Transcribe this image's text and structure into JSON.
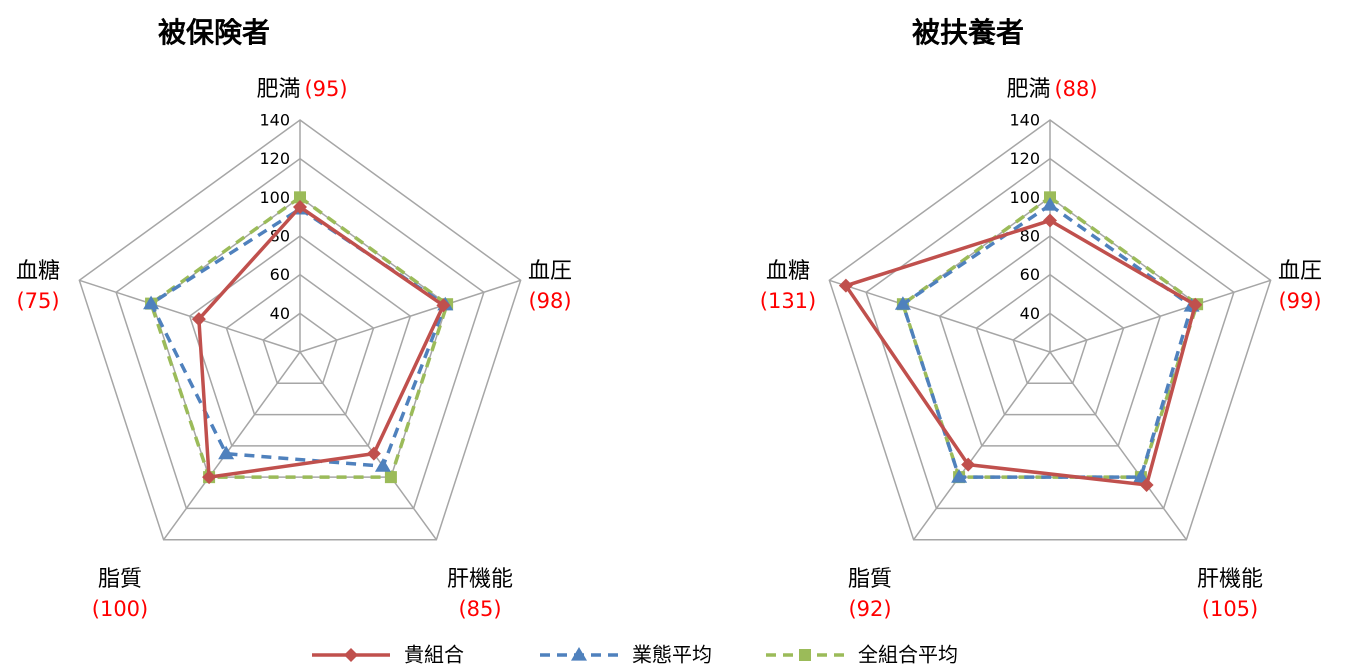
{
  "chart_data": [
    {
      "type": "radar",
      "title": "被保険者",
      "axes": [
        "肥満",
        "血圧",
        "肝機能",
        "脂質",
        "血糖"
      ],
      "axis_values": [
        "(95)",
        "(98)",
        "(85)",
        "(100)",
        "(75)"
      ],
      "rlim": [
        20,
        140
      ],
      "ticks": [
        40,
        60,
        80,
        100,
        120,
        140
      ],
      "series": [
        {
          "name": "貴組合",
          "values": [
            95,
            98,
            85,
            100,
            75
          ]
        },
        {
          "name": "業態平均",
          "values": [
            94,
            99,
            93,
            85,
            101
          ]
        },
        {
          "name": "全組合平均",
          "values": [
            100,
            100,
            100,
            100,
            101
          ]
        }
      ]
    },
    {
      "type": "radar",
      "title": "被扶養者",
      "axes": [
        "肥満",
        "血圧",
        "肝機能",
        "脂質",
        "血糖"
      ],
      "axis_values": [
        "(88)",
        "(99)",
        "(105)",
        "(92)",
        "(131)"
      ],
      "rlim": [
        20,
        140
      ],
      "ticks": [
        40,
        60,
        80,
        100,
        120,
        140
      ],
      "series": [
        {
          "name": "貴組合",
          "values": [
            88,
            99,
            105,
            92,
            131
          ]
        },
        {
          "name": "業態平均",
          "values": [
            96,
            97,
            100,
            100,
            100
          ]
        },
        {
          "name": "全組合平均",
          "values": [
            100,
            100,
            100,
            100,
            100
          ]
        }
      ]
    }
  ],
  "legend": [
    {
      "label": "貴組合",
      "color": "#C0504D",
      "marker": "diamond",
      "dash": "solid"
    },
    {
      "label": "業態平均",
      "color": "#4F81BD",
      "marker": "triangle",
      "dash": "dashed"
    },
    {
      "label": "全組合平均",
      "color": "#9BBB59",
      "marker": "square",
      "dash": "dashed"
    }
  ],
  "grid_color": "#A6A6A6"
}
